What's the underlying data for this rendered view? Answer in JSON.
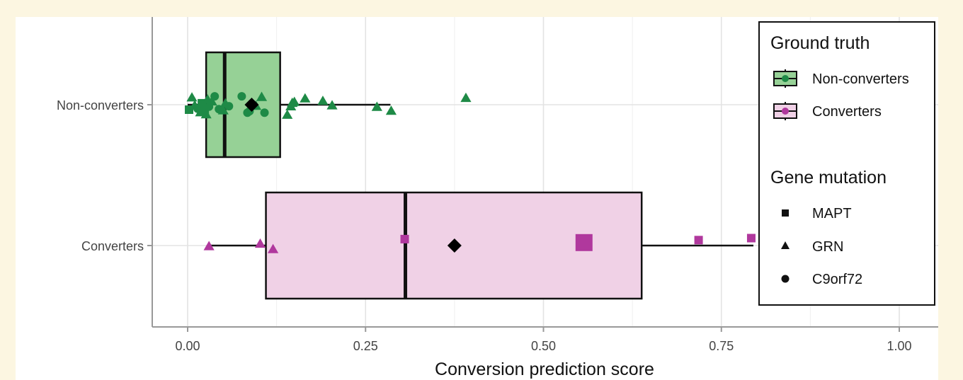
{
  "chart_data": {
    "type": "boxplot",
    "xlabel": "Conversion prediction score",
    "ylabel": "",
    "xlim": [
      -0.05,
      1.03
    ],
    "x_ticks": [
      "0.00",
      "0.25",
      "0.50",
      "0.75",
      "1.00"
    ],
    "x_tick_values": [
      0,
      0.25,
      0.5,
      0.75,
      1.0
    ],
    "grid": true,
    "categories": [
      "Non-converters",
      "Converters"
    ],
    "colors": {
      "Non-converters": {
        "fill": "#96d196",
        "point": "#1e8a46"
      },
      "Converters": {
        "fill": "#f0d1e6",
        "point": "#b0389d"
      }
    },
    "boxes": [
      {
        "group": "Non-converters",
        "whisker_low": 0.0,
        "q1": 0.026,
        "median": 0.052,
        "q3": 0.13,
        "whisker_high": 0.285,
        "mean": 0.09,
        "points": [
          {
            "x": 0.002,
            "shape": "MAPT",
            "j": 0.1
          },
          {
            "x": 0.006,
            "shape": "GRN",
            "j": -0.14
          },
          {
            "x": 0.01,
            "shape": "GRN",
            "j": 0.02
          },
          {
            "x": 0.014,
            "shape": "C9orf72",
            "j": 0.08
          },
          {
            "x": 0.018,
            "shape": "GRN",
            "j": 0.16
          },
          {
            "x": 0.02,
            "shape": "MAPT",
            "j": -0.03
          },
          {
            "x": 0.024,
            "shape": "MAPT",
            "j": 0.11
          },
          {
            "x": 0.026,
            "shape": "GRN",
            "j": 0.2
          },
          {
            "x": 0.028,
            "shape": "GRN",
            "j": -0.1
          },
          {
            "x": 0.03,
            "shape": "C9orf72",
            "j": 0.04
          },
          {
            "x": 0.034,
            "shape": "GRN",
            "j": -0.06
          },
          {
            "x": 0.038,
            "shape": "C9orf72",
            "j": -0.17
          },
          {
            "x": 0.044,
            "shape": "C9orf72",
            "j": 0.09
          },
          {
            "x": 0.05,
            "shape": "GRN",
            "j": 0.12
          },
          {
            "x": 0.053,
            "shape": "GRN",
            "j": -0.02
          },
          {
            "x": 0.058,
            "shape": "C9orf72",
            "j": 0.03
          },
          {
            "x": 0.076,
            "shape": "C9orf72",
            "j": -0.17
          },
          {
            "x": 0.084,
            "shape": "C9orf72",
            "j": 0.16
          },
          {
            "x": 0.087,
            "shape": "C9orf72",
            "j": 0.13
          },
          {
            "x": 0.096,
            "shape": "GRN",
            "j": 0.03
          },
          {
            "x": 0.104,
            "shape": "GRN",
            "j": -0.15
          },
          {
            "x": 0.108,
            "shape": "C9orf72",
            "j": 0.16
          },
          {
            "x": 0.14,
            "shape": "GRN",
            "j": 0.21
          },
          {
            "x": 0.145,
            "shape": "GRN",
            "j": 0.04
          },
          {
            "x": 0.147,
            "shape": "GRN",
            "j": -0.03
          },
          {
            "x": 0.15,
            "shape": "GRN",
            "j": -0.05
          },
          {
            "x": 0.165,
            "shape": "GRN",
            "j": -0.12
          },
          {
            "x": 0.19,
            "shape": "GRN",
            "j": -0.07
          },
          {
            "x": 0.203,
            "shape": "GRN",
            "j": 0.02
          },
          {
            "x": 0.266,
            "shape": "GRN",
            "j": 0.05
          },
          {
            "x": 0.286,
            "shape": "GRN",
            "j": 0.13
          },
          {
            "x": 0.391,
            "shape": "GRN",
            "j": -0.13
          }
        ]
      },
      {
        "group": "Converters",
        "whisker_low": 0.03,
        "q1": 0.11,
        "median": 0.306,
        "q3": 0.638,
        "whisker_high": 0.795,
        "mean": 0.375,
        "points": [
          {
            "x": 0.03,
            "shape": "GRN",
            "j": 0.02,
            "big": false
          },
          {
            "x": 0.102,
            "shape": "GRN",
            "j": -0.03,
            "big": false
          },
          {
            "x": 0.12,
            "shape": "GRN",
            "j": 0.08,
            "big": false
          },
          {
            "x": 0.305,
            "shape": "MAPT",
            "j": -0.13,
            "big": false
          },
          {
            "x": 0.557,
            "shape": "MAPT",
            "j": -0.06,
            "big": true
          },
          {
            "x": 0.718,
            "shape": "MAPT",
            "j": -0.11,
            "big": false
          },
          {
            "x": 0.792,
            "shape": "MAPT",
            "j": -0.15,
            "big": false
          }
        ]
      }
    ],
    "legend": {
      "placement": "right",
      "ground_truth": {
        "title": "Ground truth",
        "entries": [
          "Non-converters",
          "Converters"
        ]
      },
      "gene_mutation": {
        "title": "Gene mutation",
        "entries": [
          "MAPT",
          "GRN",
          "C9orf72"
        ]
      }
    }
  }
}
